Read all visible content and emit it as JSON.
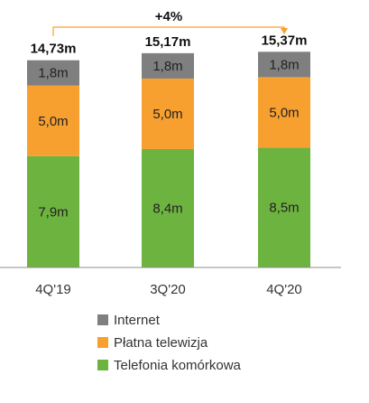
{
  "chart_data": {
    "type": "bar",
    "stacked": true,
    "categories": [
      "4Q'19",
      "3Q'20",
      "4Q'20"
    ],
    "totals": [
      14.73,
      15.17,
      15.37
    ],
    "total_labels": [
      "14,73m",
      "15,17m",
      "15,37m"
    ],
    "series": [
      {
        "name": "Telefonia komórkowa",
        "color": "#6db33f",
        "values": [
          7.9,
          8.4,
          8.5
        ],
        "labels": [
          "7,9m",
          "8,4m",
          "8,5m"
        ]
      },
      {
        "name": "Płatna telewizja",
        "color": "#f7a030",
        "values": [
          5.0,
          5.0,
          5.0
        ],
        "labels": [
          "5,0m",
          "5,0m",
          "5,0m"
        ]
      },
      {
        "name": "Internet",
        "color": "#7f7f7f",
        "values": [
          1.8,
          1.8,
          1.8
        ],
        "labels": [
          "1,8m",
          "1,8m",
          "1,8m"
        ]
      }
    ],
    "growth_annotation": {
      "text": "+4%",
      "from": "4Q'19",
      "to": "4Q'20",
      "color": "#f7a030"
    },
    "legend_order": [
      "Internet",
      "Płatna telewizja",
      "Telefonia komórkowa"
    ],
    "legend_position": "bottom",
    "grid": false
  }
}
